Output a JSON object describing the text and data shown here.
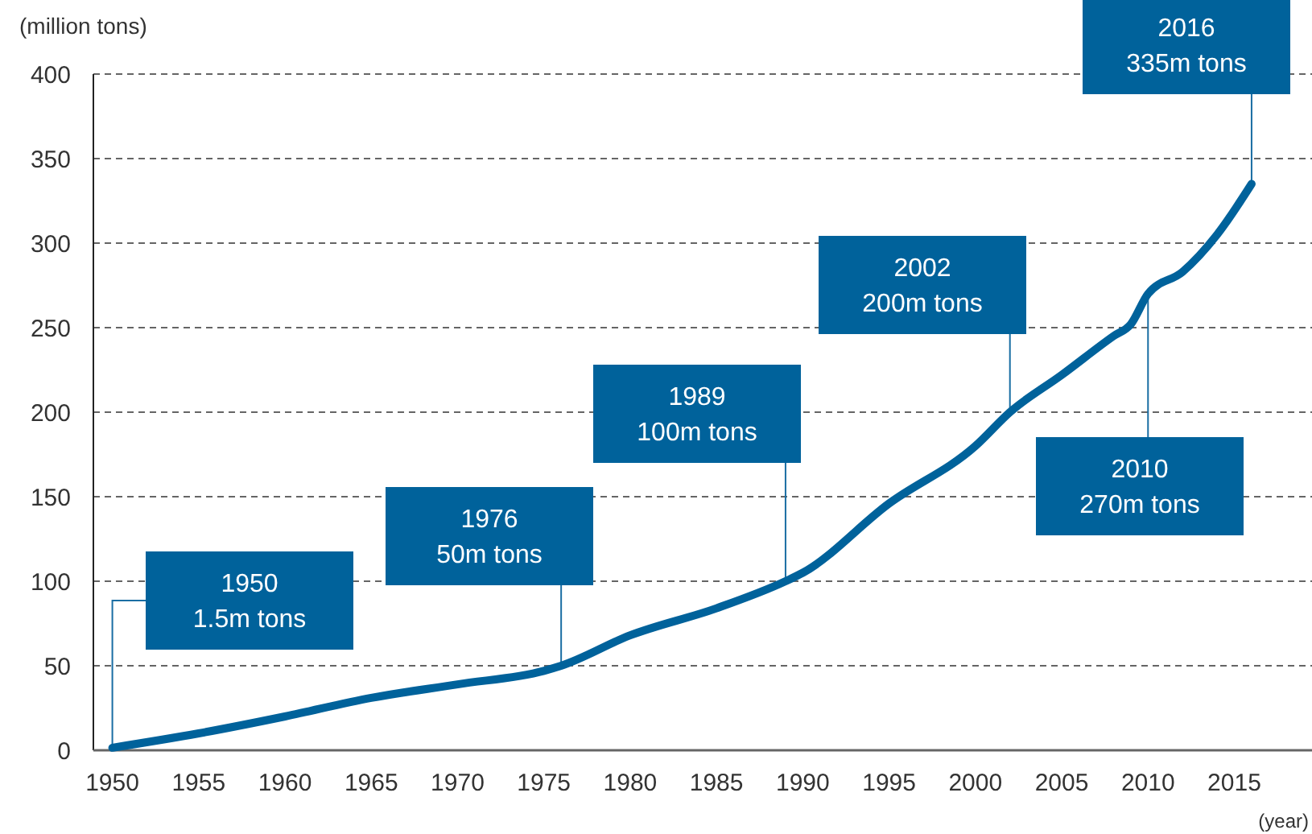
{
  "chart_data": {
    "type": "line",
    "ylabel": "(million tons)",
    "xlabel": "(year)",
    "x": [
      1950,
      1955,
      1960,
      1965,
      1970,
      1975,
      1976,
      1980,
      1985,
      1989,
      1990,
      1995,
      2000,
      2002,
      2005,
      2008,
      2009,
      2010,
      2012,
      2014,
      2016
    ],
    "series": [
      {
        "color": "#00629b",
        "values": [
          1.5,
          10,
          20,
          31,
          39,
          47,
          50,
          68,
          84,
          100,
          105,
          146,
          180,
          200,
          222,
          245,
          252,
          270,
          283,
          305,
          335
        ]
      }
    ],
    "xlim": [
      1948.9,
      2019.5
    ],
    "ylim": [
      0,
      400
    ],
    "xticks": [
      1950,
      1955,
      1960,
      1965,
      1970,
      1975,
      1980,
      1985,
      1990,
      1995,
      2000,
      2005,
      2010,
      2015
    ],
    "yticks": [
      0,
      50,
      100,
      150,
      200,
      250,
      300,
      350,
      400
    ],
    "grid": "y",
    "marker": "none",
    "line_style": "solid",
    "annotations": [
      {
        "text": "1950\n1.5m tons",
        "x": 1950,
        "y": 1.5
      },
      {
        "text": "1976\n50m tons",
        "x": 1976,
        "y": 50
      },
      {
        "text": "1989\n100m tons",
        "x": 1989,
        "y": 100
      },
      {
        "text": "2002\n200m tons",
        "x": 2002,
        "y": 200
      },
      {
        "text": "2010\n270m tons",
        "x": 2010,
        "y": 270
      },
      {
        "text": "2016\n335m tons",
        "x": 2016,
        "y": 335
      }
    ]
  }
}
